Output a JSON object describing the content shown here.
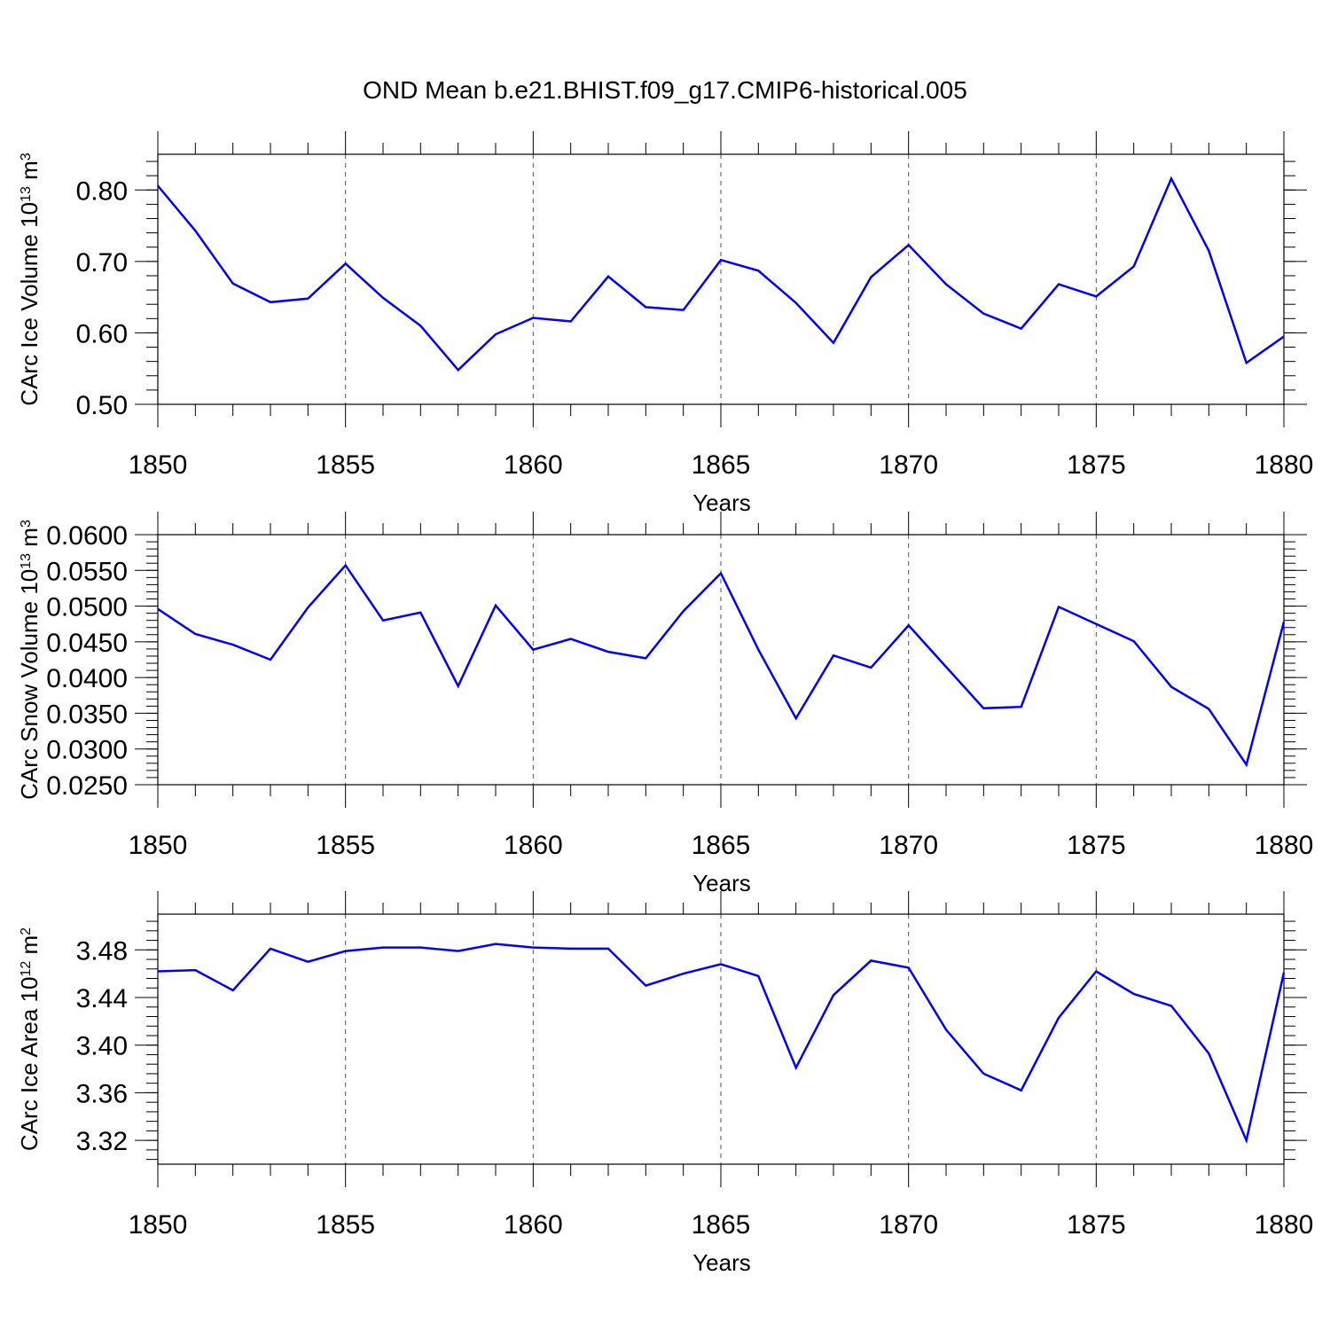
{
  "title": "OND Mean b.e21.BHIST.f09_g17.CMIP6-historical.005",
  "chart_data": [
    {
      "type": "line",
      "title": "",
      "xlabel": "Years",
      "ylabel": "CArc Ice Volume 10",
      "ylabel_sup": "13",
      "ylabel_unit": " m",
      "ylabel_unit_sup": "3",
      "xlim": [
        1850,
        1880
      ],
      "ylim": [
        0.5,
        0.85
      ],
      "xticks": [
        1850,
        1855,
        1860,
        1865,
        1870,
        1875,
        1880
      ],
      "xtick_labels": [
        "1850",
        "1855",
        "1860",
        "1865",
        "1870",
        "1875",
        "1880"
      ],
      "yticks": [
        0.5,
        0.6,
        0.7,
        0.8
      ],
      "ytick_labels": [
        "0.50",
        "0.60",
        "0.70",
        "0.80"
      ],
      "yminor_step": 0.02,
      "x": [
        1850,
        1851,
        1852,
        1853,
        1854,
        1855,
        1856,
        1857,
        1858,
        1859,
        1860,
        1861,
        1862,
        1863,
        1864,
        1865,
        1866,
        1867,
        1868,
        1869,
        1870,
        1871,
        1872,
        1873,
        1874,
        1875,
        1876,
        1877,
        1878,
        1879,
        1880
      ],
      "values": [
        0.806,
        0.743,
        0.669,
        0.643,
        0.648,
        0.697,
        0.649,
        0.61,
        0.548,
        0.598,
        0.621,
        0.616,
        0.679,
        0.636,
        0.632,
        0.702,
        0.687,
        0.642,
        0.586,
        0.678,
        0.723,
        0.668,
        0.627,
        0.606,
        0.668,
        0.651,
        0.693,
        0.816,
        0.715,
        0.558,
        0.595
      ]
    },
    {
      "type": "line",
      "title": "",
      "xlabel": "Years",
      "ylabel": "CArc Snow Volume 10",
      "ylabel_sup": "13",
      "ylabel_unit": " m",
      "ylabel_unit_sup": "3",
      "xlim": [
        1850,
        1880
      ],
      "ylim": [
        0.025,
        0.06
      ],
      "xticks": [
        1850,
        1855,
        1860,
        1865,
        1870,
        1875,
        1880
      ],
      "xtick_labels": [
        "1850",
        "1855",
        "1860",
        "1865",
        "1870",
        "1875",
        "1880"
      ],
      "yticks": [
        0.025,
        0.03,
        0.035,
        0.04,
        0.045,
        0.05,
        0.055,
        0.06
      ],
      "ytick_labels": [
        "0.0250",
        "0.0300",
        "0.0350",
        "0.0400",
        "0.0450",
        "0.0500",
        "0.0550",
        "0.0600"
      ],
      "yminor_step": 0.001,
      "x": [
        1850,
        1851,
        1852,
        1853,
        1854,
        1855,
        1856,
        1857,
        1858,
        1859,
        1860,
        1861,
        1862,
        1863,
        1864,
        1865,
        1866,
        1867,
        1868,
        1869,
        1870,
        1871,
        1872,
        1873,
        1874,
        1875,
        1876,
        1877,
        1878,
        1879,
        1880
      ],
      "values": [
        0.0496,
        0.0461,
        0.0446,
        0.0425,
        0.0498,
        0.0557,
        0.048,
        0.0491,
        0.0388,
        0.0501,
        0.0439,
        0.0454,
        0.0436,
        0.0427,
        0.0493,
        0.0546,
        0.0439,
        0.0343,
        0.0431,
        0.0414,
        0.0473,
        0.0415,
        0.0357,
        0.0359,
        0.0499,
        0.0475,
        0.0451,
        0.0387,
        0.0356,
        0.0278,
        0.0478
      ]
    },
    {
      "type": "line",
      "title": "",
      "xlabel": "Years",
      "ylabel": "CArc Ice Area 10",
      "ylabel_sup": "12",
      "ylabel_unit": " m",
      "ylabel_unit_sup": "2",
      "xlim": [
        1850,
        1880
      ],
      "ylim": [
        3.3,
        3.51
      ],
      "xticks": [
        1850,
        1855,
        1860,
        1865,
        1870,
        1875,
        1880
      ],
      "xtick_labels": [
        "1850",
        "1855",
        "1860",
        "1865",
        "1870",
        "1875",
        "1880"
      ],
      "yticks": [
        3.32,
        3.36,
        3.4,
        3.44,
        3.48
      ],
      "ytick_labels": [
        "3.32",
        "3.36",
        "3.40",
        "3.44",
        "3.48"
      ],
      "yminor_step": 0.008,
      "x": [
        1850,
        1851,
        1852,
        1853,
        1854,
        1855,
        1856,
        1857,
        1858,
        1859,
        1860,
        1861,
        1862,
        1863,
        1864,
        1865,
        1866,
        1867,
        1868,
        1869,
        1870,
        1871,
        1872,
        1873,
        1874,
        1875,
        1876,
        1877,
        1878,
        1879,
        1880
      ],
      "values": [
        3.462,
        3.463,
        3.446,
        3.481,
        3.47,
        3.479,
        3.482,
        3.482,
        3.479,
        3.485,
        3.482,
        3.481,
        3.481,
        3.45,
        3.46,
        3.468,
        3.458,
        3.381,
        3.442,
        3.471,
        3.465,
        3.413,
        3.376,
        3.362,
        3.423,
        3.462,
        3.443,
        3.433,
        3.393,
        3.32,
        3.461
      ]
    }
  ]
}
